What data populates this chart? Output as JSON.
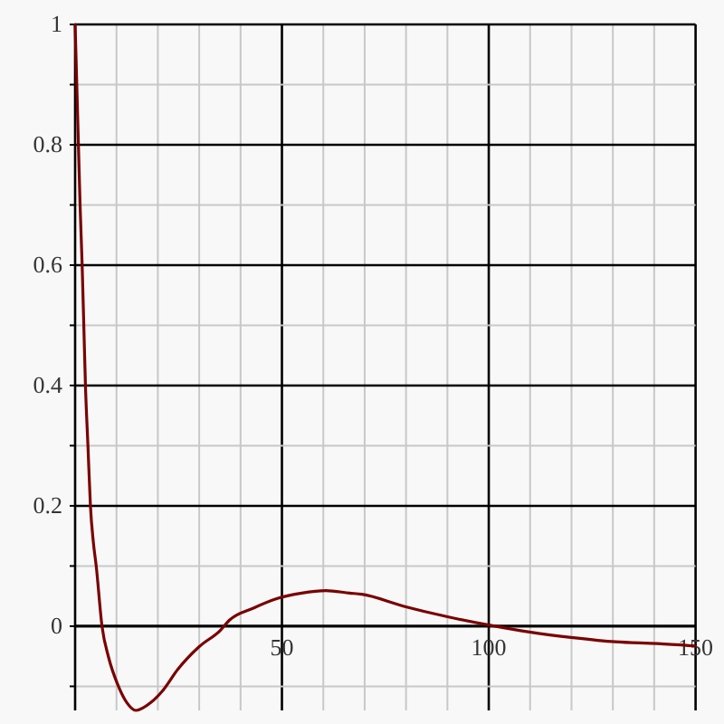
{
  "chart_data": {
    "type": "line",
    "color": "#7a0000",
    "x": [
      0,
      0.4,
      0.8,
      1.2,
      1.7,
      2.1,
      2.5,
      3.1,
      3.7,
      4.4,
      5.1,
      6.5,
      8.1,
      10.3,
      12.5,
      14.7,
      18.3,
      21.2,
      24.8,
      30,
      35.1,
      37.3,
      43.1,
      48.9,
      54.8,
      60.6,
      66.4,
      69.3,
      79.5,
      89.8,
      100,
      110.2,
      120.4,
      130.6,
      140.8,
      150
    ],
    "values": [
      1,
      0.9,
      0.8,
      0.7,
      0.6,
      0.5,
      0.4,
      0.3,
      0.2,
      0.14,
      0.1,
      0,
      -0.052,
      -0.097,
      -0.127,
      -0.14,
      -0.127,
      -0.107,
      -0.072,
      -0.034,
      -0.007,
      0.01,
      0.03,
      0.046,
      0.055,
      0.059,
      0.055,
      0.053,
      0.033,
      0.016,
      0.002,
      -0.01,
      -0.019,
      -0.026,
      -0.029,
      -0.033
    ],
    "xlim": [
      0,
      150
    ],
    "ylim": [
      -0.14,
      1
    ],
    "xticks": [
      {
        "value": 10,
        "label": null
      },
      {
        "value": 20,
        "label": null
      },
      {
        "value": 30,
        "label": null
      },
      {
        "value": 40,
        "label": null
      },
      50,
      {
        "value": 60,
        "label": null
      },
      {
        "value": 70,
        "label": null
      },
      {
        "value": 80,
        "label": null
      },
      {
        "value": 90,
        "label": null
      },
      100,
      {
        "value": 110,
        "label": null
      },
      {
        "value": 120,
        "label": null
      },
      {
        "value": 130,
        "label": null
      },
      {
        "value": 140,
        "label": null
      },
      150
    ],
    "yticks": [
      {
        "value": -0.1,
        "label": null
      },
      0,
      {
        "value": 0.1,
        "label": null
      },
      0.2,
      {
        "value": 0.3,
        "label": null
      },
      0.4,
      {
        "value": 0.5,
        "label": null
      },
      0.6,
      {
        "value": 0.7,
        "label": null
      },
      0.8,
      {
        "value": 0.9,
        "label": null
      },
      1
    ],
    "grid": true
  }
}
